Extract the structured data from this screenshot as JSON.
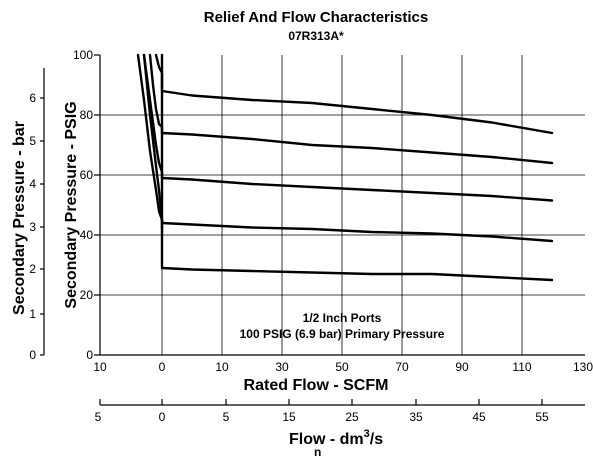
{
  "chart_data": {
    "type": "line",
    "title": "Relief And Flow Characteristics",
    "subtitle": "07R313A*",
    "xlabel": "Rated Flow - SCFM",
    "ylabel": "Secondary Pressure - PSIG",
    "ylabel_secondary": "Secondary Pressure - bar",
    "xlabel_secondary": "Flow - dm",
    "xlabel_secondary_sup": "3",
    "xlabel_secondary_tail": "/s",
    "xlabel_secondary_sub": "n",
    "ylim": [
      0,
      100
    ],
    "grid": true,
    "x_ticks": [
      "10",
      "0",
      "10",
      "30",
      "50",
      "70",
      "90",
      "110",
      "130"
    ],
    "y_ticks": [
      "0",
      "20",
      "40",
      "60",
      "80",
      "100"
    ],
    "y2_ticks": [
      "0",
      "1",
      "2",
      "3",
      "4",
      "5",
      "6"
    ],
    "x2_ticks": [
      "5",
      "0",
      "5",
      "15",
      "25",
      "35",
      "45",
      "55"
    ],
    "annotation_line1": "1/2 Inch Ports",
    "annotation_line2": "100 PSIG (6.9 bar) Primary Pressure",
    "series": [
      {
        "x": [
          -6,
          -4,
          -2,
          -1,
          0,
          0,
          10,
          30,
          50,
          70,
          90,
          110,
          130
        ],
        "y": [
          100,
          80,
          63,
          55,
          45,
          29,
          28.5,
          28,
          27.5,
          27,
          27,
          26,
          25
        ]
      },
      {
        "x": [
          -8,
          -6,
          -4,
          -2,
          -1,
          0,
          0,
          10,
          30,
          50,
          70,
          90,
          110,
          130
        ],
        "y": [
          100,
          85,
          68,
          55,
          48,
          45,
          44,
          43.5,
          42.5,
          42,
          41,
          40.5,
          39.5,
          38
        ]
      },
      {
        "x": [
          -6,
          -4,
          -2,
          -1,
          0,
          0,
          10,
          30,
          50,
          70,
          90,
          110,
          130
        ],
        "y": [
          100,
          85,
          70,
          64,
          61,
          59,
          58.5,
          57,
          56,
          55,
          54,
          53,
          51.5
        ]
      },
      {
        "x": [
          -4,
          -3,
          -2,
          -1,
          0,
          0,
          10,
          30,
          50,
          70,
          90,
          110,
          130
        ],
        "y": [
          100,
          90,
          82,
          77,
          76,
          74,
          73.5,
          72,
          70,
          69,
          67.5,
          66,
          64
        ]
      },
      {
        "x": [
          -2,
          -1,
          0,
          0,
          10,
          30,
          50,
          70,
          90,
          110,
          130
        ],
        "y": [
          100,
          96,
          94,
          88,
          86.5,
          85,
          84,
          82,
          80,
          77.5,
          74
        ]
      },
      {
        "x": [
          0,
          0
        ],
        "y": [
          42,
          100
        ]
      }
    ]
  }
}
